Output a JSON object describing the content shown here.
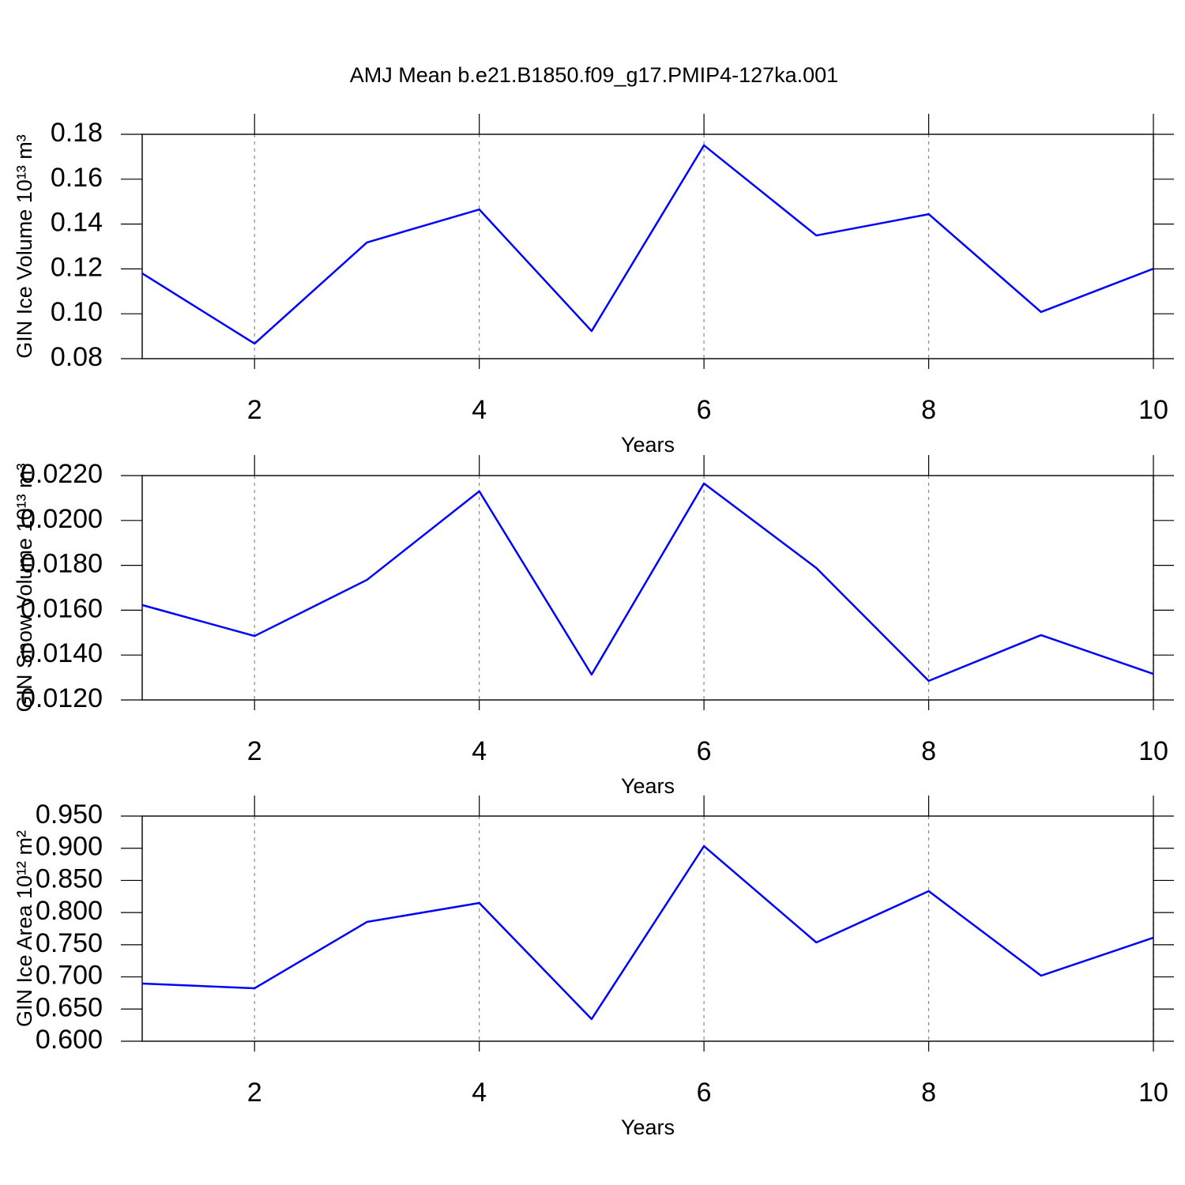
{
  "chart_data": [
    {
      "type": "line",
      "title": "AMJ Mean b.e21.B1850.f09_g17.PMIP4-127ka.001",
      "xlabel": "Years",
      "ylabel": "GIN Ice Volume 10¹³ m³",
      "x": [
        1,
        2,
        3,
        4,
        5,
        6,
        7,
        8,
        9,
        10
      ],
      "series": [
        {
          "name": "GIN Ice Volume",
          "color": "#0000ff",
          "values": [
            0.118,
            0.0867,
            0.1318,
            0.1465,
            0.0923,
            0.1751,
            0.1349,
            0.1444,
            0.1008,
            0.1201
          ]
        }
      ],
      "xlim": [
        1,
        10
      ],
      "xticks": [
        2,
        4,
        6,
        8,
        10
      ],
      "ylim": [
        0.08,
        0.18
      ],
      "yticks": [
        0.08,
        {
          "value": 0.1,
          "label": "0.10"
        },
        0.12,
        0.14,
        0.16,
        0.18
      ],
      "grid": true
    },
    {
      "type": "line",
      "xlabel": "Years",
      "ylabel": "GIN Snow Volume 10¹³ m³",
      "x": [
        1,
        2,
        3,
        4,
        5,
        6,
        7,
        8,
        9,
        10
      ],
      "series": [
        {
          "name": "GIN Snow Volume",
          "color": "#0000ff",
          "values": [
            0.01623,
            0.01485,
            0.01735,
            0.0213,
            0.01313,
            0.02165,
            0.01788,
            0.01285,
            0.01489,
            0.01316
          ]
        }
      ],
      "xlim": [
        1,
        10
      ],
      "xticks": [
        2,
        4,
        6,
        8,
        10
      ],
      "ylim": [
        0.012,
        0.022
      ],
      "yticks": [
        {
          "value": 0.012,
          "label": "0.0120"
        },
        {
          "value": 0.014,
          "label": "0.0140"
        },
        {
          "value": 0.016,
          "label": "0.0160"
        },
        {
          "value": 0.018,
          "label": "0.0180"
        },
        {
          "value": 0.02,
          "label": "0.0200"
        },
        {
          "value": 0.022,
          "label": "0.0220"
        }
      ],
      "grid": true
    },
    {
      "type": "line",
      "xlabel": "Years",
      "ylabel": "GIN Ice Area 10¹² m²",
      "x": [
        1,
        2,
        3,
        4,
        5,
        6,
        7,
        8,
        9,
        10
      ],
      "series": [
        {
          "name": "GIN Ice Area",
          "color": "#0000ff",
          "values": [
            0.6897,
            0.6823,
            0.7854,
            0.8149,
            0.6344,
            0.9033,
            0.7535,
            0.8333,
            0.7019,
            0.7609
          ]
        }
      ],
      "xlim": [
        1,
        10
      ],
      "xticks": [
        2,
        4,
        6,
        8,
        10
      ],
      "ylim": [
        0.6,
        0.95
      ],
      "yticks": [
        {
          "value": 0.6,
          "label": "0.600"
        },
        {
          "value": 0.65,
          "label": "0.650"
        },
        {
          "value": 0.7,
          "label": "0.700"
        },
        {
          "value": 0.75,
          "label": "0.750"
        },
        {
          "value": 0.8,
          "label": "0.800"
        },
        {
          "value": 0.85,
          "label": "0.850"
        },
        {
          "value": 0.9,
          "label": "0.900"
        },
        {
          "value": 0.95,
          "label": "0.950"
        }
      ],
      "grid": true
    }
  ]
}
